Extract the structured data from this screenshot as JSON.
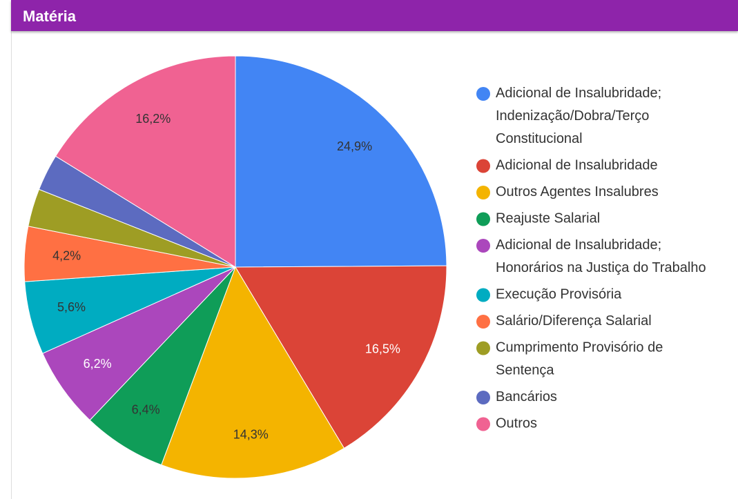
{
  "header": {
    "title": "Matéria"
  },
  "chart_data": {
    "type": "pie",
    "categories": [
      "Adicional de Insalubridade; Indenização/Dobra/Terço Constitucional",
      "Adicional de Insalubridade",
      "Outros Agentes Insalubres",
      "Reajuste Salarial",
      "Adicional de Insalubridade; Honorários na Justiça do Trabalho",
      "Execução Provisória",
      "Salário/Diferença Salarial",
      "Cumprimento Provisório de Sentença",
      "Bancários",
      "Outros"
    ],
    "values": [
      24.9,
      16.5,
      14.3,
      6.4,
      6.2,
      5.6,
      4.2,
      2.9,
      2.8,
      16.2
    ],
    "value_labels": [
      "24,9%",
      "16,5%",
      "14,3%",
      "6,4%",
      "6,2%",
      "5,6%",
      "4,2%",
      null,
      null,
      "16,2%"
    ],
    "colors": [
      "#4285f4",
      "#db4437",
      "#f4b400",
      "#0f9d58",
      "#ab47bc",
      "#00acc1",
      "#ff7043",
      "#9e9d24",
      "#5c6bc0",
      "#f06292"
    ],
    "value_label_colors": [
      "#333333",
      "#ffffff",
      "#333333",
      "#333333",
      "#ffffff",
      "#333333",
      "#333333",
      "#333333",
      "#333333",
      "#333333"
    ],
    "legend": "right"
  }
}
